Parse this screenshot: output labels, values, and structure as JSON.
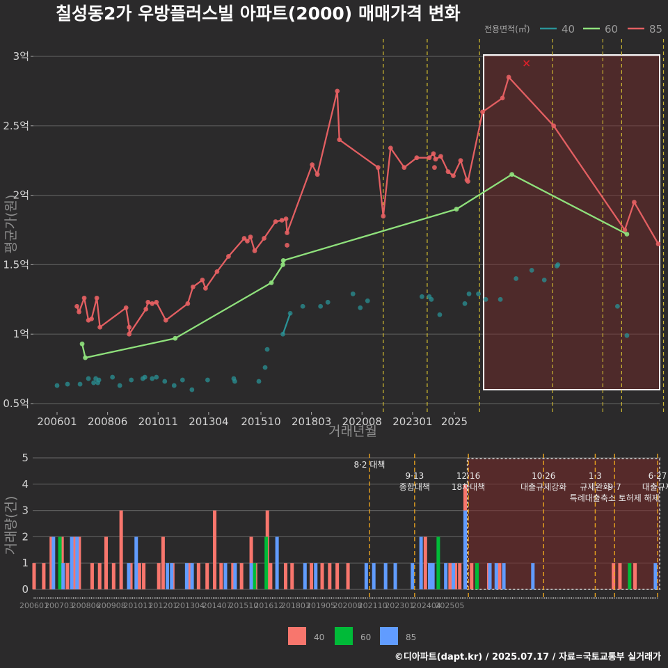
{
  "chart_data": [
    {
      "type": "line",
      "title": "칠성동2가 우방플러스빌 아파트(2000) 매매가격 변화",
      "xlabel": "거래년월",
      "ylabel": "평균가(원)",
      "x_ticks": [
        "200601",
        "200806",
        "201011",
        "201304",
        "201510",
        "201803",
        "202008",
        "202301",
        "2025"
      ],
      "y_ticks": [
        "0.5억",
        "1억",
        "1.5억",
        "2억",
        "2.5억",
        "3억"
      ],
      "ylim": [
        0.5,
        3.0
      ],
      "legend_title": "전용면적(㎡)",
      "legend": [
        "40",
        "60",
        "85"
      ],
      "colors": {
        "40": "#2a9296",
        "60": "#8fe17c",
        "85": "#e35f62"
      },
      "series": [
        {
          "name": "85",
          "style": "line",
          "points": [
            [
              2006.95,
              1.2
            ],
            [
              2007.05,
              1.16
            ],
            [
              2007.3,
              1.26
            ],
            [
              2007.5,
              1.1
            ],
            [
              2007.65,
              1.11
            ],
            [
              2007.9,
              1.26
            ],
            [
              2008.05,
              1.05
            ],
            [
              2009.3,
              1.19
            ],
            [
              2009.45,
              1.05
            ],
            [
              2009.45,
              1.0
            ],
            [
              2010.25,
              1.18
            ],
            [
              2010.35,
              1.23
            ],
            [
              2010.55,
              1.22
            ],
            [
              2010.75,
              1.23
            ],
            [
              2011.2,
              1.1
            ],
            [
              2012.25,
              1.22
            ],
            [
              2012.5,
              1.34
            ],
            [
              2012.95,
              1.39
            ],
            [
              2013.1,
              1.33
            ],
            [
              2013.65,
              1.45
            ],
            [
              2014.2,
              1.56
            ],
            [
              2014.95,
              1.69
            ],
            [
              2015.1,
              1.67
            ],
            [
              2015.25,
              1.7
            ],
            [
              2015.45,
              1.6
            ],
            [
              2015.9,
              1.69
            ],
            [
              2016.45,
              1.81
            ],
            [
              2016.75,
              1.82
            ],
            [
              2016.95,
              1.83
            ],
            [
              2017.0,
              1.73
            ],
            [
              2018.2,
              2.22
            ],
            [
              2018.45,
              2.15
            ],
            [
              2019.4,
              2.75
            ],
            [
              2019.5,
              2.4
            ],
            [
              2021.35,
              2.2
            ],
            [
              2021.6,
              1.85
            ],
            [
              2021.95,
              2.34
            ],
            [
              2022.6,
              2.2
            ],
            [
              2023.2,
              2.27
            ],
            [
              2023.8,
              2.27
            ],
            [
              2024.0,
              2.3
            ],
            [
              2024.1,
              2.26
            ],
            [
              2024.35,
              2.28
            ],
            [
              2024.7,
              2.17
            ],
            [
              2024.95,
              2.14
            ],
            [
              2025.3,
              2.25
            ],
            [
              2025.6,
              2.11
            ],
            [
              2025.65,
              2.1
            ],
            [
              2026.35,
              2.6
            ],
            [
              2027.3,
              2.7
            ],
            [
              2027.6,
              2.85
            ],
            [
              2029.75,
              2.5
            ],
            [
              2033.15,
              1.75
            ],
            [
              2033.6,
              1.95
            ],
            [
              2034.75,
              1.65
            ]
          ]
        },
        {
          "name": "85",
          "style": "point",
          "points": [
            [
              2017.0,
              1.64
            ],
            [
              2024.05,
              2.2
            ]
          ]
        },
        {
          "name": "60",
          "style": "line",
          "points": [
            [
              2007.2,
              0.93
            ],
            [
              2007.35,
              0.83
            ],
            [
              2011.65,
              0.97
            ],
            [
              2016.25,
              1.37
            ],
            [
              2016.8,
              1.5
            ],
            [
              2016.82,
              1.53
            ],
            [
              2025.1,
              1.9
            ],
            [
              2027.75,
              2.15
            ],
            [
              2033.25,
              1.72
            ]
          ]
        },
        {
          "name": "40",
          "style": "line",
          "points": [
            [
              2016.8,
              1.0
            ],
            [
              2017.15,
              1.15
            ]
          ]
        },
        {
          "name": "40",
          "style": "point",
          "points": [
            [
              2006.0,
              0.63
            ],
            [
              2006.5,
              0.64
            ],
            [
              2007.1,
              0.64
            ],
            [
              2007.5,
              0.68
            ],
            [
              2007.75,
              0.65
            ],
            [
              2007.85,
              0.68
            ],
            [
              2007.95,
              0.65
            ],
            [
              2008.0,
              0.67
            ],
            [
              2008.65,
              0.69
            ],
            [
              2009.0,
              0.63
            ],
            [
              2009.55,
              0.67
            ],
            [
              2010.1,
              0.68
            ],
            [
              2010.2,
              0.69
            ],
            [
              2010.55,
              0.68
            ],
            [
              2010.75,
              0.69
            ],
            [
              2011.15,
              0.66
            ],
            [
              2011.6,
              0.63
            ],
            [
              2012.0,
              0.67
            ],
            [
              2012.45,
              0.6
            ],
            [
              2013.2,
              0.67
            ],
            [
              2014.45,
              0.68
            ],
            [
              2014.5,
              0.66
            ],
            [
              2015.65,
              0.66
            ],
            [
              2015.95,
              0.76
            ],
            [
              2016.05,
              0.89
            ],
            [
              2017.75,
              1.2
            ],
            [
              2018.6,
              1.2
            ],
            [
              2018.95,
              1.23
            ],
            [
              2020.15,
              1.29
            ],
            [
              2020.5,
              1.19
            ],
            [
              2020.85,
              1.24
            ],
            [
              2023.45,
              1.27
            ],
            [
              2023.8,
              1.27
            ],
            [
              2023.9,
              1.25
            ],
            [
              2024.3,
              1.14
            ],
            [
              2025.5,
              1.22
            ],
            [
              2025.7,
              1.29
            ],
            [
              2026.15,
              1.29
            ],
            [
              2026.5,
              1.25
            ],
            [
              2027.2,
              1.25
            ],
            [
              2027.95,
              1.4
            ],
            [
              2028.7,
              1.46
            ],
            [
              2029.3,
              1.39
            ],
            [
              2029.9,
              1.49
            ],
            [
              2029.95,
              1.5
            ],
            [
              2032.8,
              1.2
            ],
            [
              2033.25,
              0.99
            ]
          ]
        },
        {
          "name": "85",
          "style": "cross",
          "points": [
            [
              2028.45,
              2.95
            ]
          ]
        }
      ]
    },
    {
      "type": "bar",
      "ylabel": "거래량(건)",
      "ylim": [
        0,
        5
      ],
      "y_ticks": [
        "0",
        "1",
        "2",
        "3",
        "4",
        "5"
      ],
      "x_ticks": [
        "200601",
        "200703",
        "200806",
        "200908",
        "201011",
        "201201",
        "201304",
        "201407",
        "201510",
        "201612",
        "201803",
        "201905",
        "202008",
        "202110",
        "202301",
        "202404",
        "202505"
      ],
      "legend": [
        "40",
        "60",
        "85"
      ],
      "colors": {
        "40": "#f8766d",
        "60": "#00ba38",
        "85": "#619cff"
      },
      "series": [
        {
          "name": "40",
          "values": [
            [
              2006.0,
              1
            ],
            [
              2006.45,
              1
            ],
            [
              2006.8,
              2
            ],
            [
              2007.3,
              2
            ],
            [
              2007.55,
              1
            ],
            [
              2007.9,
              2
            ],
            [
              2008.1,
              2
            ],
            [
              2008.7,
              1
            ],
            [
              2009.05,
              1
            ],
            [
              2009.35,
              2
            ],
            [
              2009.7,
              1
            ],
            [
              2010.05,
              3
            ],
            [
              2010.5,
              1
            ],
            [
              2010.9,
              1
            ],
            [
              2011.1,
              1
            ],
            [
              2011.8,
              1
            ],
            [
              2012.0,
              2
            ],
            [
              2012.45,
              1
            ],
            [
              2013.25,
              1
            ],
            [
              2013.65,
              1
            ],
            [
              2014.05,
              1
            ],
            [
              2014.4,
              3
            ],
            [
              2014.7,
              1
            ],
            [
              2015.25,
              1
            ],
            [
              2015.65,
              1
            ],
            [
              2016.1,
              2
            ],
            [
              2016.3,
              1
            ],
            [
              2016.85,
              3
            ],
            [
              2017.0,
              1
            ],
            [
              2017.7,
              1
            ],
            [
              2018.0,
              1
            ],
            [
              2018.9,
              1
            ],
            [
              2019.4,
              1
            ],
            [
              2019.75,
              1
            ],
            [
              2020.1,
              1
            ],
            [
              2020.6,
              1
            ],
            [
              2024.0,
              1
            ],
            [
              2024.2,
              2
            ],
            [
              2025.35,
              1
            ],
            [
              2025.6,
              1
            ],
            [
              2025.8,
              1
            ],
            [
              2026.05,
              4
            ],
            [
              2026.35,
              1
            ],
            [
              2027.15,
              1
            ],
            [
              2027.65,
              1
            ],
            [
              2032.95,
              1
            ],
            [
              2033.25,
              1
            ],
            [
              2033.95,
              1
            ]
          ]
        },
        {
          "name": "60",
          "values": [
            [
              2007.2,
              2
            ],
            [
              2016.25,
              1
            ],
            [
              2016.8,
              2
            ],
            [
              2024.8,
              2
            ],
            [
              2026.6,
              1
            ],
            [
              2033.7,
              1
            ]
          ]
        },
        {
          "name": "85",
          "values": [
            [
              2006.9,
              2
            ],
            [
              2007.35,
              1
            ],
            [
              2007.75,
              2
            ],
            [
              2008.0,
              2
            ],
            [
              2010.4,
              1
            ],
            [
              2010.75,
              2
            ],
            [
              2012.2,
              1
            ],
            [
              2012.4,
              1
            ],
            [
              2013.1,
              1
            ],
            [
              2013.35,
              1
            ],
            [
              2014.9,
              1
            ],
            [
              2015.35,
              1
            ],
            [
              2016.1,
              1
            ],
            [
              2017.3,
              2
            ],
            [
              2018.6,
              1
            ],
            [
              2019.1,
              1
            ],
            [
              2021.45,
              1
            ],
            [
              2021.8,
              1
            ],
            [
              2022.35,
              1
            ],
            [
              2022.8,
              1
            ],
            [
              2023.6,
              1
            ],
            [
              2024.0,
              2
            ],
            [
              2024.4,
              1
            ],
            [
              2024.55,
              1
            ],
            [
              2025.15,
              1
            ],
            [
              2025.5,
              1
            ],
            [
              2026.05,
              3
            ],
            [
              2027.2,
              1
            ],
            [
              2027.5,
              1
            ],
            [
              2027.85,
              1
            ],
            [
              2029.2,
              1
            ],
            [
              2034.9,
              1
            ]
          ]
        }
      ]
    }
  ],
  "policies": [
    {
      "x": 2021.6,
      "lines": [
        "8·2 대책"
      ],
      "rows": [
        0
      ]
    },
    {
      "x": 2023.7,
      "lines": [
        "9·13",
        "종합대책"
      ],
      "rows": [
        1,
        2
      ]
    },
    {
      "x": 2026.2,
      "lines": [
        "12·16",
        "18차대책"
      ],
      "rows": [
        1,
        2
      ]
    },
    {
      "x": 2029.7,
      "lines": [
        "10·26",
        "대출규제강화"
      ],
      "rows": [
        1,
        2
      ]
    },
    {
      "x": 2032.1,
      "lines": [
        "1·3",
        "규제완화"
      ],
      "rows": [
        1,
        2
      ]
    },
    {
      "x": 2033.0,
      "lines": [
        "9·7",
        "특례대출축소 토허제 해제"
      ],
      "rows": [
        2,
        3
      ]
    },
    {
      "x": 2035.0,
      "lines": [
        "6·27",
        "대출규제"
      ],
      "rows": [
        1,
        2
      ]
    }
  ],
  "credit": "©디아파트(dapt.kr) / 2025.07.17 / 자료=국토교통부 실거래가"
}
